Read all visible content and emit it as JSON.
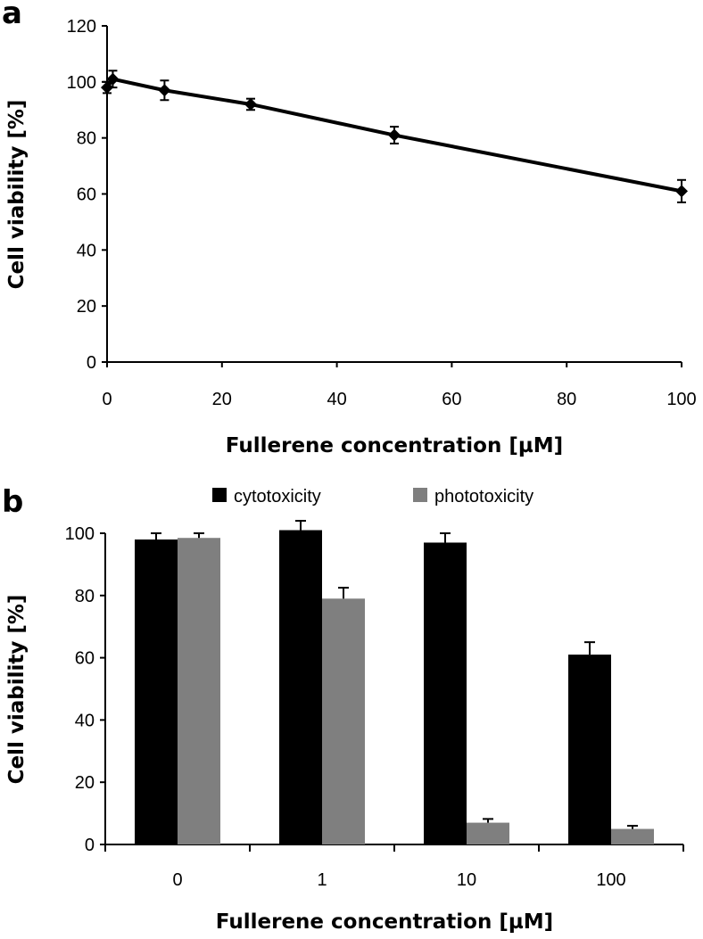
{
  "chart_data": [
    {
      "panel": "a",
      "type": "line",
      "x": [
        0,
        1,
        10,
        25,
        50,
        100
      ],
      "y": [
        98,
        101,
        97,
        92,
        81,
        61
      ],
      "y_err": [
        2,
        3,
        3.5,
        2,
        3,
        4
      ],
      "xlabel": "Fullerene concentration [µM]",
      "ylabel": "Cell viability [%]",
      "xlim": [
        0,
        100
      ],
      "ylim": [
        0,
        120
      ],
      "xticks": [
        0,
        20,
        40,
        60,
        80,
        100
      ],
      "yticks": [
        0,
        20,
        40,
        60,
        80,
        100,
        120
      ],
      "marker": "diamond",
      "color": "#000000"
    },
    {
      "panel": "b",
      "type": "bar",
      "categories": [
        "0",
        "1",
        "10",
        "100"
      ],
      "series": [
        {
          "name": "cytotoxicity",
          "values": [
            98,
            101,
            97,
            61
          ],
          "errors": [
            2,
            3,
            3,
            4
          ],
          "color": "#000000"
        },
        {
          "name": "phototoxicity",
          "values": [
            98.5,
            79,
            7,
            5
          ],
          "errors": [
            1.5,
            3.5,
            1.2,
            1
          ],
          "color": "#7f7f7f"
        }
      ],
      "xlabel": "Fullerene concentration [µM]",
      "ylabel": "Cell viability [%]",
      "ylim": [
        0,
        100
      ],
      "yticks": [
        0,
        20,
        40,
        60,
        80,
        100
      ],
      "legend": "top"
    }
  ]
}
